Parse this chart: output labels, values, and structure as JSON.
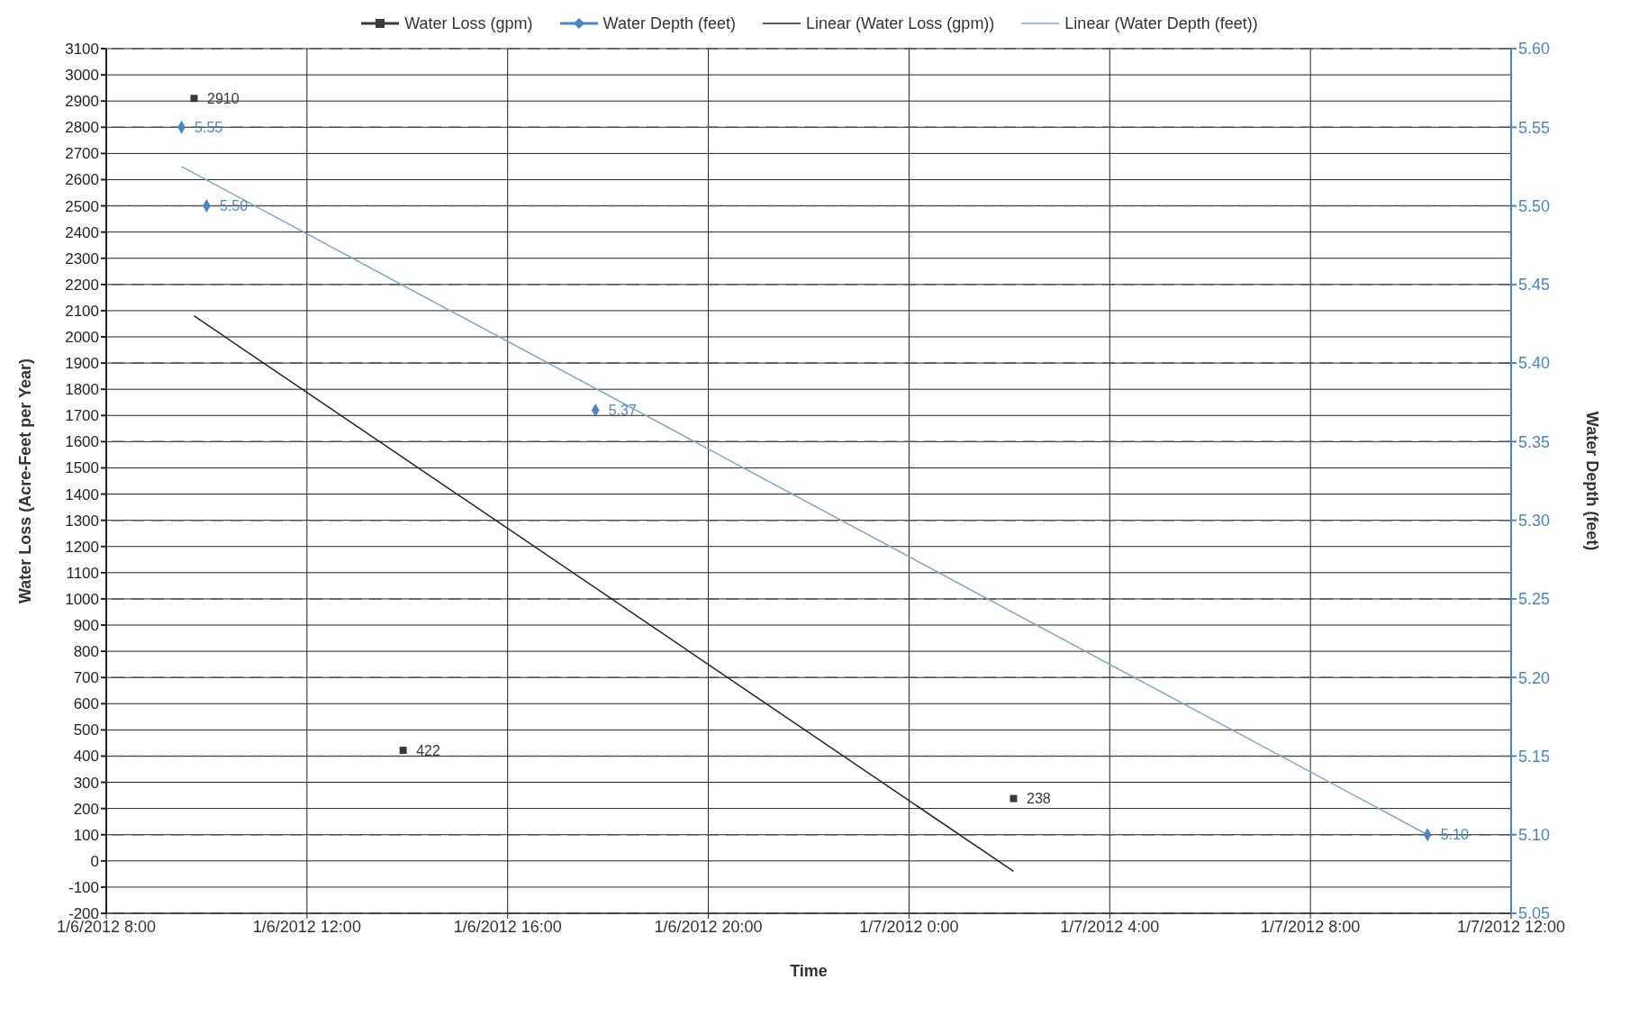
{
  "chart_data": {
    "type": "scatter",
    "xlabel": "Time",
    "ylabel": "Water Loss (Acre-Feet per Year)",
    "y2label": "Water Depth (feet)",
    "series": [
      {
        "name": "Water Loss (gpm)",
        "marker": "square",
        "color": "#3a3a3a",
        "x": [
          "2012-01-06T09:45",
          "2012-01-06T13:55",
          "2012-01-07T02:05"
        ],
        "values": [
          2910,
          422,
          238
        ],
        "value_labels": [
          "2910",
          "422",
          "238"
        ]
      },
      {
        "name": "Water Depth (feet)",
        "marker": "diamond",
        "axis": "y2",
        "color": "#4a86c5",
        "x": [
          "2012-01-06T09:30",
          "2012-01-06T10:00",
          "2012-01-06T17:45",
          "2012-01-07T10:20"
        ],
        "values": [
          5.55,
          5.5,
          5.37,
          5.1
        ],
        "value_labels": [
          "5.55",
          "5.50",
          "5.37",
          "5.10"
        ]
      },
      {
        "name": "Linear (Water Loss (gpm))",
        "type": "line",
        "marker": "none",
        "color": "#222222",
        "x": [
          "2012-01-06T09:45",
          "2012-01-07T02:05"
        ],
        "values": [
          2080,
          -40
        ]
      },
      {
        "name": "Linear (Water Depth (feet))",
        "type": "line",
        "marker": "none",
        "axis": "y2",
        "color": "#7aaac8",
        "x": [
          "2012-01-06T09:30",
          "2012-01-07T10:20"
        ],
        "values": [
          5.525,
          5.1
        ]
      }
    ],
    "xlim": [
      "2012-01-06T08:00",
      "2012-01-07T12:00"
    ],
    "xticks": [
      {
        "value": "2012-01-06T08:00",
        "label": "1/6/2012 8:00"
      },
      {
        "value": "2012-01-06T12:00",
        "label": "1/6/2012 12:00"
      },
      {
        "value": "2012-01-06T16:00",
        "label": "1/6/2012 16:00"
      },
      {
        "value": "2012-01-06T20:00",
        "label": "1/6/2012 20:00"
      },
      {
        "value": "2012-01-07T00:00",
        "label": "1/7/2012 0:00"
      },
      {
        "value": "2012-01-07T04:00",
        "label": "1/7/2012 4:00"
      },
      {
        "value": "2012-01-07T08:00",
        "label": "1/7/2012 8:00"
      },
      {
        "value": "2012-01-07T12:00",
        "label": "1/7/2012 12:00"
      }
    ],
    "ylim": [
      -200,
      3100
    ],
    "yticks": [
      -200,
      -100,
      0,
      100,
      200,
      300,
      400,
      500,
      600,
      700,
      800,
      900,
      1000,
      1100,
      1200,
      1300,
      1400,
      1500,
      1600,
      1700,
      1800,
      1900,
      2000,
      2100,
      2200,
      2300,
      2400,
      2500,
      2600,
      2700,
      2800,
      2900,
      3000,
      3100
    ],
    "y2lim": [
      5.05,
      5.6
    ],
    "y2ticks": [
      {
        "value": 5.05,
        "label": "5.05"
      },
      {
        "value": 5.1,
        "label": "5.10"
      },
      {
        "value": 5.15,
        "label": "5.15"
      },
      {
        "value": 5.2,
        "label": "5.20"
      },
      {
        "value": 5.25,
        "label": "5.25"
      },
      {
        "value": 5.3,
        "label": "5.30"
      },
      {
        "value": 5.35,
        "label": "5.35"
      },
      {
        "value": 5.4,
        "label": "5.40"
      },
      {
        "value": 5.45,
        "label": "5.45"
      },
      {
        "value": 5.5,
        "label": "5.50"
      },
      {
        "value": 5.55,
        "label": "5.55"
      },
      {
        "value": 5.6,
        "label": "5.60"
      }
    ],
    "grid": true,
    "legend": "top"
  }
}
